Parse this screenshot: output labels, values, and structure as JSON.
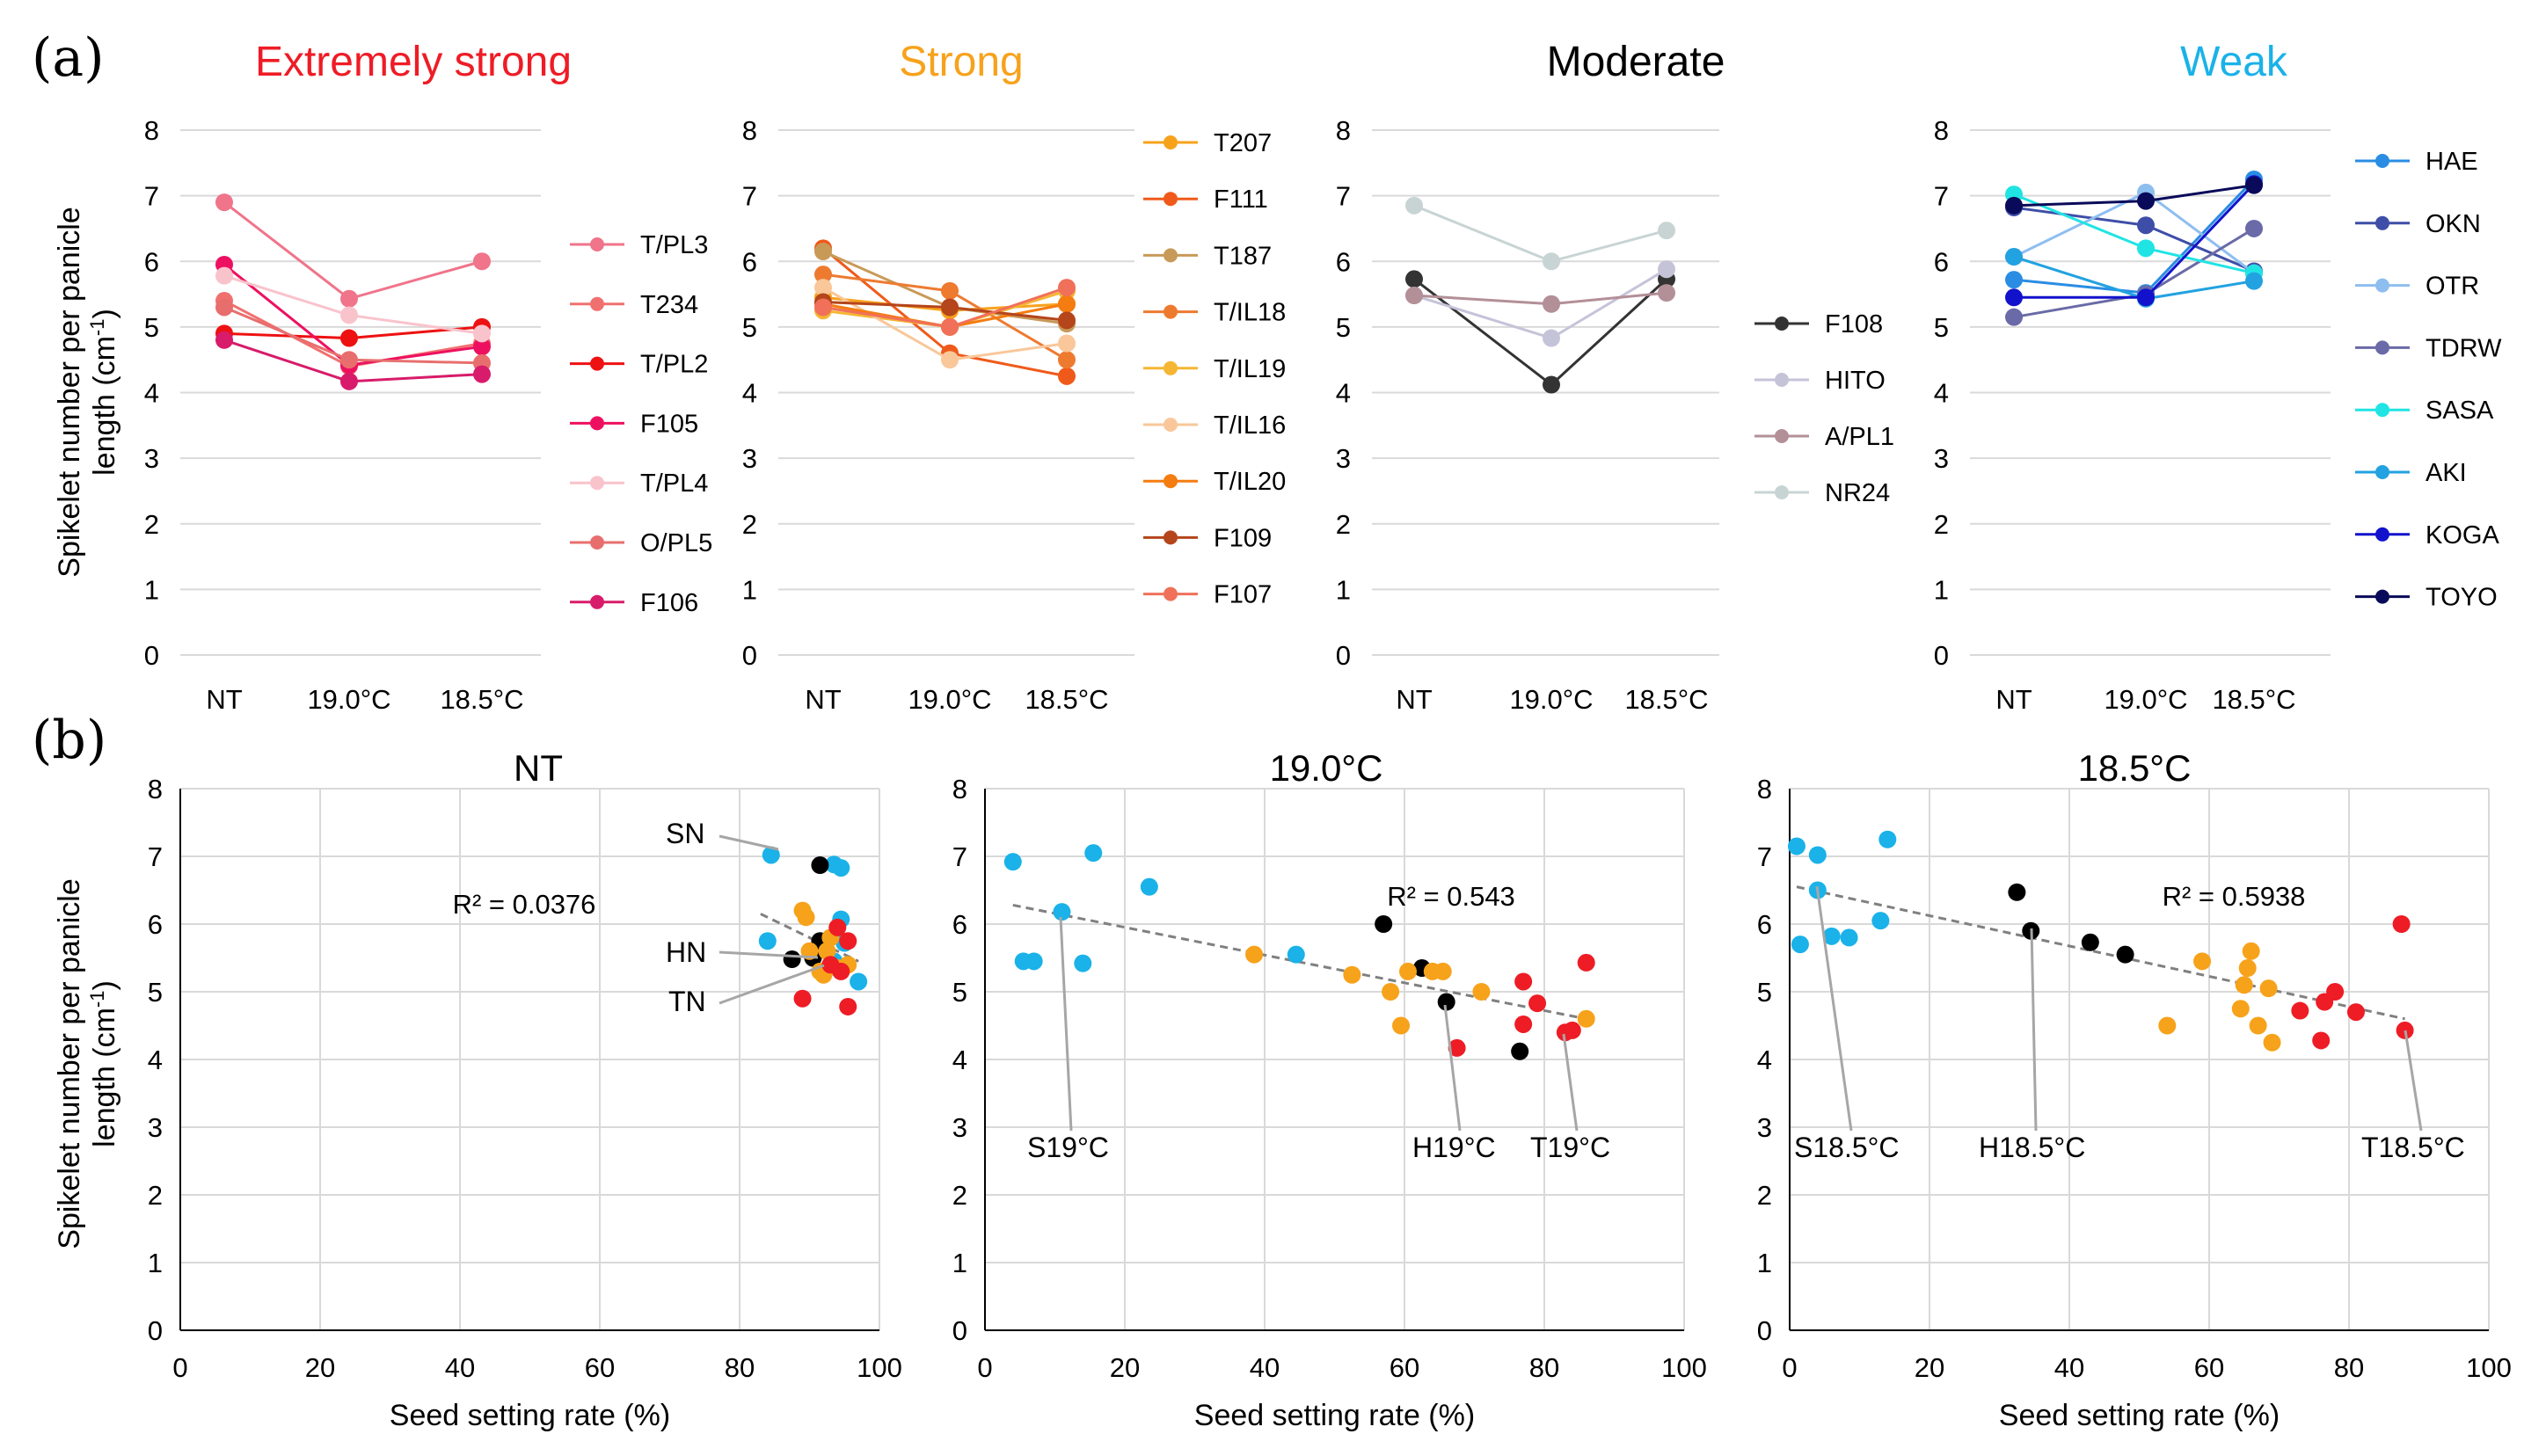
{
  "panel_labels": {
    "a": "(a)",
    "b": "(b)"
  },
  "chart_data": [
    {
      "panel": "a",
      "type": "line",
      "title": "Extremely strong",
      "title_color": "#ee1c25",
      "categories": [
        "NT",
        "19.0°C",
        "18.5°C"
      ],
      "ylabel": "Spikelet number per panicle length (cm⁻¹)",
      "ylim": [
        0,
        8
      ],
      "series": [
        {
          "name": "T/PL3",
          "color": "#f0748a",
          "values": [
            6.9,
            5.43,
            6.0
          ]
        },
        {
          "name": "T234",
          "color": "#f07070",
          "values": [
            5.4,
            4.4,
            4.75
          ]
        },
        {
          "name": "T/PL2",
          "color": "#ee1111",
          "values": [
            4.9,
            4.83,
            5.0
          ]
        },
        {
          "name": "F105",
          "color": "#ee1060",
          "values": [
            5.95,
            4.42,
            4.7
          ]
        },
        {
          "name": "T/PL4",
          "color": "#f9c3cc",
          "values": [
            5.78,
            5.18,
            4.9
          ]
        },
        {
          "name": "O/PL5",
          "color": "#e86e6e",
          "values": [
            5.3,
            4.5,
            4.45
          ]
        },
        {
          "name": "F106",
          "color": "#d81b6a",
          "values": [
            4.8,
            4.17,
            4.28
          ]
        }
      ]
    },
    {
      "panel": "a",
      "type": "line",
      "title": "Strong",
      "title_color": "#f7a21b",
      "categories": [
        "NT",
        "19.0°C",
        "18.5°C"
      ],
      "ylabel": "",
      "ylim": [
        0,
        8
      ],
      "series": [
        {
          "name": "T207",
          "color": "#f7a21b",
          "values": [
            5.45,
            5.25,
            5.35
          ]
        },
        {
          "name": "F111",
          "color": "#ef5a1a",
          "values": [
            6.2,
            4.6,
            4.25
          ]
        },
        {
          "name": "T187",
          "color": "#c89a58",
          "values": [
            6.15,
            5.3,
            5.05
          ]
        },
        {
          "name": "T/IL18",
          "color": "#ee7a30",
          "values": [
            5.8,
            5.55,
            4.5
          ]
        },
        {
          "name": "T/IL19",
          "color": "#f5b633",
          "values": [
            5.25,
            5.0,
            5.55
          ]
        },
        {
          "name": "T/IL16",
          "color": "#f9c79a",
          "values": [
            5.6,
            4.5,
            4.75
          ]
        },
        {
          "name": "T/IL20",
          "color": "#f57c10",
          "values": [
            5.35,
            5.0,
            5.35
          ]
        },
        {
          "name": "F109",
          "color": "#b5451b",
          "values": [
            5.38,
            5.3,
            5.1
          ]
        },
        {
          "name": "F107",
          "color": "#f0705a",
          "values": [
            5.3,
            5.0,
            5.6
          ]
        }
      ]
    },
    {
      "panel": "a",
      "type": "line",
      "title": "Moderate",
      "title_color": "#000000",
      "categories": [
        "NT",
        "19.0°C",
        "18.5°C"
      ],
      "ylabel": "",
      "ylim": [
        0,
        8
      ],
      "series": [
        {
          "name": "F108",
          "color": "#333333",
          "values": [
            5.73,
            4.12,
            5.73
          ]
        },
        {
          "name": "HITO",
          "color": "#c5c3d8",
          "values": [
            5.48,
            4.83,
            5.88
          ]
        },
        {
          "name": "A/PL1",
          "color": "#b38f98",
          "values": [
            5.48,
            5.35,
            5.52
          ]
        },
        {
          "name": "NR24",
          "color": "#c8d4d4",
          "values": [
            6.85,
            6.0,
            6.47
          ]
        }
      ]
    },
    {
      "panel": "a",
      "type": "line",
      "title": "Weak",
      "title_color": "#1ab2e8",
      "categories": [
        "NT",
        "19.0°C",
        "18.5°C"
      ],
      "ylabel": "",
      "ylim": [
        0,
        8
      ],
      "series": [
        {
          "name": "HAE",
          "color": "#2a8de3",
          "values": [
            5.72,
            5.52,
            7.25
          ]
        },
        {
          "name": "OKN",
          "color": "#3e4ea8",
          "values": [
            6.82,
            6.55,
            5.85
          ]
        },
        {
          "name": "OTR",
          "color": "#8ebef0",
          "values": [
            6.07,
            7.05,
            5.82
          ]
        },
        {
          "name": "TDRW",
          "color": "#6a6aa8",
          "values": [
            5.15,
            5.5,
            6.5
          ]
        },
        {
          "name": "SASA",
          "color": "#20e4e4",
          "values": [
            7.02,
            6.2,
            5.82
          ]
        },
        {
          "name": "AKI",
          "color": "#22a2e0",
          "values": [
            6.07,
            5.43,
            5.7
          ]
        },
        {
          "name": "KOGA",
          "color": "#1212cc",
          "values": [
            5.45,
            5.45,
            7.18
          ]
        },
        {
          "name": "TOYO",
          "color": "#0a0a5a",
          "values": [
            6.85,
            6.92,
            7.16
          ]
        }
      ]
    },
    {
      "panel": "b",
      "type": "scatter",
      "title": "NT",
      "xlabel": "Seed setting rate (%)",
      "ylabel": "Spikelet number per panicle length (cm⁻¹)",
      "xlim": [
        0,
        100
      ],
      "ylim": [
        0,
        8
      ],
      "r_squared_label": "R² = 0.0376",
      "trendline": {
        "x": [
          83,
          97
        ],
        "y": [
          6.15,
          5.45
        ]
      },
      "annotations": [
        {
          "text": "SN",
          "x": 84.5,
          "y": 7.0
        },
        {
          "text": "HN",
          "x": 91,
          "y": 5.5
        },
        {
          "text": "TN",
          "x": 92,
          "y": 5.45
        }
      ],
      "points": [
        {
          "x": 84.5,
          "y": 7.02,
          "color": "#1ab2e8"
        },
        {
          "x": 93.5,
          "y": 6.88,
          "color": "#1ab2e8"
        },
        {
          "x": 94.5,
          "y": 6.83,
          "color": "#1ab2e8"
        },
        {
          "x": 94.5,
          "y": 6.07,
          "color": "#1ab2e8"
        },
        {
          "x": 84,
          "y": 5.75,
          "color": "#1ab2e8"
        },
        {
          "x": 93.5,
          "y": 5.45,
          "color": "#1ab2e8"
        },
        {
          "x": 97,
          "y": 5.15,
          "color": "#1ab2e8"
        },
        {
          "x": 95,
          "y": 5.72,
          "color": "#1ab2e8"
        },
        {
          "x": 91.5,
          "y": 6.87,
          "color": "#000000"
        },
        {
          "x": 91.5,
          "y": 5.75,
          "color": "#000000"
        },
        {
          "x": 87.5,
          "y": 5.48,
          "color": "#000000"
        },
        {
          "x": 90.5,
          "y": 5.5,
          "color": "#000000"
        },
        {
          "x": 89,
          "y": 6.2,
          "color": "#f7a21b"
        },
        {
          "x": 89.5,
          "y": 6.1,
          "color": "#f7a21b"
        },
        {
          "x": 90,
          "y": 5.6,
          "color": "#f7a21b"
        },
        {
          "x": 91.5,
          "y": 5.3,
          "color": "#f7a21b"
        },
        {
          "x": 92,
          "y": 5.25,
          "color": "#f7a21b"
        },
        {
          "x": 94,
          "y": 5.35,
          "color": "#f7a21b"
        },
        {
          "x": 95.5,
          "y": 5.4,
          "color": "#f7a21b"
        },
        {
          "x": 92.5,
          "y": 5.6,
          "color": "#f7a21b"
        },
        {
          "x": 93,
          "y": 5.8,
          "color": "#f7a21b"
        },
        {
          "x": 89,
          "y": 4.9,
          "color": "#ee1c25"
        },
        {
          "x": 95.5,
          "y": 4.78,
          "color": "#ee1c25"
        },
        {
          "x": 94,
          "y": 5.95,
          "color": "#ee1c25"
        },
        {
          "x": 95.5,
          "y": 5.75,
          "color": "#ee1c25"
        },
        {
          "x": 94.5,
          "y": 5.3,
          "color": "#ee1c25"
        },
        {
          "x": 93,
          "y": 5.4,
          "color": "#ee1c25"
        }
      ]
    },
    {
      "panel": "b",
      "type": "scatter",
      "title": "19.0°C",
      "xlabel": "Seed setting rate (%)",
      "ylabel": "",
      "xlim": [
        0,
        100
      ],
      "ylim": [
        0,
        8
      ],
      "r_squared_label": "R² = 0.543",
      "trendline": {
        "x": [
          4,
          85
        ],
        "y": [
          6.28,
          4.62
        ]
      },
      "annotations": [
        {
          "text": "S19°C",
          "x": 11,
          "y": 6.18
        },
        {
          "text": "H19°C",
          "x": 66,
          "y": 4.85
        },
        {
          "text": "T19°C",
          "x": 83,
          "y": 4.4
        }
      ],
      "points": [
        {
          "x": 4,
          "y": 6.92,
          "color": "#1ab2e8"
        },
        {
          "x": 5.5,
          "y": 5.45,
          "color": "#1ab2e8"
        },
        {
          "x": 7,
          "y": 5.45,
          "color": "#1ab2e8"
        },
        {
          "x": 11,
          "y": 6.18,
          "color": "#1ab2e8"
        },
        {
          "x": 14,
          "y": 5.42,
          "color": "#1ab2e8"
        },
        {
          "x": 15.5,
          "y": 7.05,
          "color": "#1ab2e8"
        },
        {
          "x": 23.5,
          "y": 6.55,
          "color": "#1ab2e8"
        },
        {
          "x": 44.5,
          "y": 5.55,
          "color": "#1ab2e8"
        },
        {
          "x": 57,
          "y": 6.0,
          "color": "#000000"
        },
        {
          "x": 62.5,
          "y": 5.35,
          "color": "#000000"
        },
        {
          "x": 66,
          "y": 4.85,
          "color": "#000000"
        },
        {
          "x": 76.5,
          "y": 4.12,
          "color": "#000000"
        },
        {
          "x": 38.5,
          "y": 5.55,
          "color": "#f7a21b"
        },
        {
          "x": 52.5,
          "y": 5.25,
          "color": "#f7a21b"
        },
        {
          "x": 58,
          "y": 5.0,
          "color": "#f7a21b"
        },
        {
          "x": 59.5,
          "y": 4.5,
          "color": "#f7a21b"
        },
        {
          "x": 60.5,
          "y": 5.3,
          "color": "#f7a21b"
        },
        {
          "x": 64,
          "y": 5.3,
          "color": "#f7a21b"
        },
        {
          "x": 65.5,
          "y": 5.3,
          "color": "#f7a21b"
        },
        {
          "x": 71,
          "y": 5.0,
          "color": "#f7a21b"
        },
        {
          "x": 86,
          "y": 4.6,
          "color": "#f7a21b"
        },
        {
          "x": 67.5,
          "y": 4.17,
          "color": "#ee1c25"
        },
        {
          "x": 77,
          "y": 5.15,
          "color": "#ee1c25"
        },
        {
          "x": 77,
          "y": 4.52,
          "color": "#ee1c25"
        },
        {
          "x": 79,
          "y": 4.83,
          "color": "#ee1c25"
        },
        {
          "x": 83,
          "y": 4.4,
          "color": "#ee1c25"
        },
        {
          "x": 84,
          "y": 4.43,
          "color": "#ee1c25"
        },
        {
          "x": 86,
          "y": 5.43,
          "color": "#ee1c25"
        }
      ]
    },
    {
      "panel": "b",
      "type": "scatter",
      "title": "18.5°C",
      "xlabel": "Seed setting rate (%)",
      "ylabel": "",
      "xlim": [
        0,
        100
      ],
      "ylim": [
        0,
        8
      ],
      "r_squared_label": "R² = 0.5938",
      "trendline": {
        "x": [
          1,
          88
        ],
        "y": [
          6.55,
          4.6
        ]
      },
      "annotations": [
        {
          "text": "S18.5°C",
          "x": 4,
          "y": 6.5
        },
        {
          "text": "H18.5°C",
          "x": 34.5,
          "y": 5.9
        },
        {
          "text": "T18.5°C",
          "x": 88,
          "y": 4.43
        }
      ],
      "points": [
        {
          "x": 1,
          "y": 7.15,
          "color": "#1ab2e8"
        },
        {
          "x": 1.5,
          "y": 5.7,
          "color": "#1ab2e8"
        },
        {
          "x": 4,
          "y": 7.02,
          "color": "#1ab2e8"
        },
        {
          "x": 4,
          "y": 6.5,
          "color": "#1ab2e8"
        },
        {
          "x": 6,
          "y": 5.82,
          "color": "#1ab2e8"
        },
        {
          "x": 8.5,
          "y": 5.8,
          "color": "#1ab2e8"
        },
        {
          "x": 13,
          "y": 6.05,
          "color": "#1ab2e8"
        },
        {
          "x": 14,
          "y": 7.25,
          "color": "#1ab2e8"
        },
        {
          "x": 32.5,
          "y": 6.47,
          "color": "#000000"
        },
        {
          "x": 34.5,
          "y": 5.9,
          "color": "#000000"
        },
        {
          "x": 43,
          "y": 5.73,
          "color": "#000000"
        },
        {
          "x": 48,
          "y": 5.55,
          "color": "#000000"
        },
        {
          "x": 54,
          "y": 4.5,
          "color": "#f7a21b"
        },
        {
          "x": 59,
          "y": 5.45,
          "color": "#f7a21b"
        },
        {
          "x": 64.5,
          "y": 4.75,
          "color": "#f7a21b"
        },
        {
          "x": 65,
          "y": 5.1,
          "color": "#f7a21b"
        },
        {
          "x": 65.5,
          "y": 5.35,
          "color": "#f7a21b"
        },
        {
          "x": 66,
          "y": 5.6,
          "color": "#f7a21b"
        },
        {
          "x": 67,
          "y": 4.5,
          "color": "#f7a21b"
        },
        {
          "x": 68.5,
          "y": 5.05,
          "color": "#f7a21b"
        },
        {
          "x": 69,
          "y": 4.25,
          "color": "#f7a21b"
        },
        {
          "x": 73,
          "y": 4.72,
          "color": "#ee1c25"
        },
        {
          "x": 76,
          "y": 4.28,
          "color": "#ee1c25"
        },
        {
          "x": 76.5,
          "y": 4.85,
          "color": "#ee1c25"
        },
        {
          "x": 78,
          "y": 5.0,
          "color": "#ee1c25"
        },
        {
          "x": 81,
          "y": 4.7,
          "color": "#ee1c25"
        },
        {
          "x": 87.5,
          "y": 6.0,
          "color": "#ee1c25"
        },
        {
          "x": 88,
          "y": 4.43,
          "color": "#ee1c25"
        }
      ]
    }
  ]
}
